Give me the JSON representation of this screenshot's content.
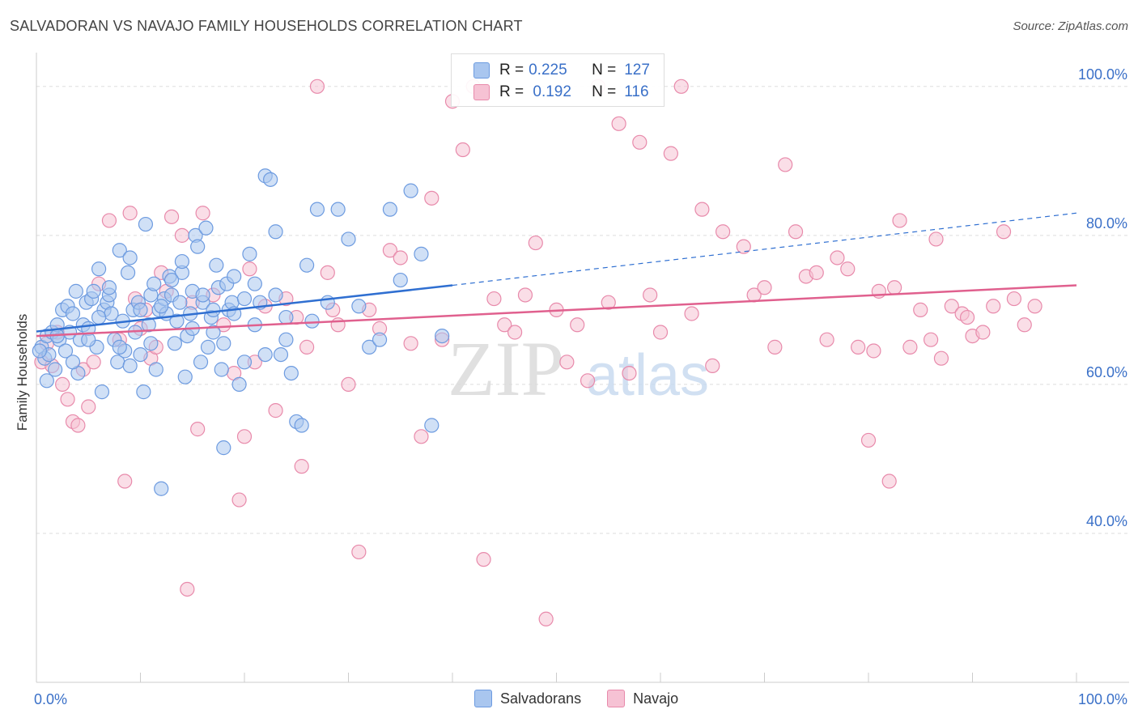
{
  "title": "SALVADORAN VS NAVAJO FAMILY HOUSEHOLDS CORRELATION CHART",
  "source": "Source: ZipAtlas.com",
  "watermark": {
    "zip": "ZIP",
    "atlas": "atlas"
  },
  "legend": {
    "rows": [
      {
        "r_label": "R =",
        "r_value": "0.225",
        "n_label": "N =",
        "n_value": "127"
      },
      {
        "r_label": "R =",
        "r_value": " 0.192",
        "n_label": "N =",
        "n_value": "116"
      }
    ]
  },
  "bottom_legend": [
    "Salvadorans",
    "Navajo"
  ],
  "colors": {
    "blue_fill": "#a9c6ef",
    "blue_stroke": "#6d9be0",
    "blue_line": "#2f6fd1",
    "pink_fill": "#f6c2d4",
    "pink_stroke": "#e88aab",
    "pink_line": "#e0608e",
    "grid": "#dddddd",
    "axis_text": "#3a70c8"
  },
  "chart_data": {
    "type": "scatter",
    "title": "SALVADORAN VS NAVAJO FAMILY HOUSEHOLDS CORRELATION CHART",
    "xlabel": "",
    "ylabel": "Family Households",
    "xlim": [
      0,
      100
    ],
    "ylim": [
      20,
      104
    ],
    "x_tick_labels": [
      "0.0%",
      "100.0%"
    ],
    "y_ticks": [
      40,
      60,
      80,
      100
    ],
    "y_tick_labels": [
      "40.0%",
      "60.0%",
      "80.0%",
      "100.0%"
    ],
    "series": [
      {
        "name": "Salvadorans",
        "r": 0.225,
        "n": 127,
        "trend": {
          "x0": 0,
          "y0": 67.1,
          "x1": 40,
          "y1": 73.3,
          "dash_to_x": 100,
          "dash_to_y": 83.0
        },
        "points": [
          [
            0.5,
            65.0
          ],
          [
            0.8,
            63.5
          ],
          [
            1.0,
            66.5
          ],
          [
            1.2,
            64.0
          ],
          [
            1.5,
            67.0
          ],
          [
            1.8,
            62.0
          ],
          [
            2.0,
            68.0
          ],
          [
            2.2,
            66.0
          ],
          [
            2.5,
            70.0
          ],
          [
            2.8,
            64.5
          ],
          [
            3.0,
            70.5
          ],
          [
            3.2,
            67.0
          ],
          [
            3.5,
            69.5
          ],
          [
            3.8,
            72.5
          ],
          [
            4.0,
            61.5
          ],
          [
            4.2,
            66.0
          ],
          [
            4.5,
            68.0
          ],
          [
            4.8,
            71.0
          ],
          [
            5.0,
            67.5
          ],
          [
            5.3,
            71.5
          ],
          [
            5.5,
            72.5
          ],
          [
            5.8,
            65.0
          ],
          [
            6.0,
            75.5
          ],
          [
            6.3,
            59.0
          ],
          [
            6.5,
            70.0
          ],
          [
            6.8,
            71.0
          ],
          [
            7.0,
            72.0
          ],
          [
            7.2,
            69.5
          ],
          [
            7.5,
            66.0
          ],
          [
            7.8,
            63.0
          ],
          [
            8.0,
            78.0
          ],
          [
            8.3,
            68.5
          ],
          [
            8.5,
            64.5
          ],
          [
            8.8,
            75.0
          ],
          [
            9.0,
            77.0
          ],
          [
            9.3,
            70.0
          ],
          [
            9.5,
            67.0
          ],
          [
            9.8,
            71.0
          ],
          [
            10.0,
            64.0
          ],
          [
            10.3,
            59.0
          ],
          [
            10.5,
            81.5
          ],
          [
            10.8,
            68.0
          ],
          [
            11.0,
            72.0
          ],
          [
            11.3,
            73.5
          ],
          [
            11.5,
            62.0
          ],
          [
            11.8,
            70.0
          ],
          [
            12.0,
            46.0
          ],
          [
            12.3,
            71.5
          ],
          [
            12.5,
            69.5
          ],
          [
            12.8,
            74.5
          ],
          [
            13.0,
            72.0
          ],
          [
            13.3,
            65.5
          ],
          [
            13.5,
            68.5
          ],
          [
            13.8,
            71.0
          ],
          [
            14.0,
            75.0
          ],
          [
            14.3,
            61.0
          ],
          [
            14.5,
            66.5
          ],
          [
            14.8,
            69.5
          ],
          [
            15.0,
            72.5
          ],
          [
            15.3,
            80.0
          ],
          [
            15.5,
            78.5
          ],
          [
            15.8,
            63.0
          ],
          [
            16.0,
            71.0
          ],
          [
            16.3,
            81.0
          ],
          [
            16.5,
            65.0
          ],
          [
            16.8,
            69.0
          ],
          [
            17.0,
            67.0
          ],
          [
            17.3,
            76.0
          ],
          [
            17.5,
            73.0
          ],
          [
            17.8,
            62.0
          ],
          [
            18.0,
            51.5
          ],
          [
            18.3,
            73.5
          ],
          [
            18.5,
            70.0
          ],
          [
            18.8,
            71.0
          ],
          [
            19.0,
            74.5
          ],
          [
            19.5,
            60.0
          ],
          [
            20.0,
            63.0
          ],
          [
            20.5,
            77.5
          ],
          [
            21.0,
            73.5
          ],
          [
            21.5,
            71.0
          ],
          [
            22.0,
            88.0
          ],
          [
            22.5,
            87.5
          ],
          [
            23.0,
            80.5
          ],
          [
            23.5,
            64.0
          ],
          [
            24.0,
            66.0
          ],
          [
            24.5,
            61.5
          ],
          [
            25.0,
            55.0
          ],
          [
            25.5,
            54.5
          ],
          [
            26.0,
            76.0
          ],
          [
            26.5,
            68.5
          ],
          [
            27.0,
            83.5
          ],
          [
            28.0,
            71.0
          ],
          [
            29.0,
            83.5
          ],
          [
            30.0,
            79.5
          ],
          [
            31.0,
            70.5
          ],
          [
            32.0,
            65.0
          ],
          [
            33.0,
            66.0
          ],
          [
            34.0,
            83.5
          ],
          [
            35.0,
            74.0
          ],
          [
            36.0,
            86.0
          ],
          [
            37.0,
            77.5
          ],
          [
            38.0,
            54.5
          ],
          [
            39.0,
            66.5
          ],
          [
            1.0,
            60.5
          ],
          [
            2.0,
            66.5
          ],
          [
            3.5,
            63.0
          ],
          [
            5.0,
            66.0
          ],
          [
            6.0,
            69.0
          ],
          [
            7.0,
            73.0
          ],
          [
            8.0,
            65.0
          ],
          [
            9.0,
            62.5
          ],
          [
            10.0,
            70.0
          ],
          [
            11.0,
            65.5
          ],
          [
            12.0,
            70.5
          ],
          [
            13.0,
            74.0
          ],
          [
            14.0,
            76.5
          ],
          [
            15.0,
            67.5
          ],
          [
            16.0,
            72.0
          ],
          [
            17.0,
            70.0
          ],
          [
            18.0,
            65.5
          ],
          [
            19.0,
            69.5
          ],
          [
            20.0,
            71.5
          ],
          [
            21.0,
            68.0
          ],
          [
            22.0,
            64.0
          ],
          [
            23.0,
            72.0
          ],
          [
            24.0,
            69.0
          ],
          [
            0.3,
            64.5
          ]
        ]
      },
      {
        "name": "Navajo",
        "r": 0.192,
        "n": 116,
        "trend": {
          "x0": 0,
          "y0": 66.5,
          "x1": 100,
          "y1": 73.3
        },
        "points": [
          [
            0.5,
            63.0
          ],
          [
            1.0,
            65.5
          ],
          [
            1.5,
            62.5
          ],
          [
            2.0,
            67.0
          ],
          [
            2.5,
            60.0
          ],
          [
            3.0,
            58.0
          ],
          [
            3.5,
            55.0
          ],
          [
            4.0,
            54.5
          ],
          [
            4.5,
            62.0
          ],
          [
            5.0,
            57.0
          ],
          [
            5.5,
            63.0
          ],
          [
            6.0,
            73.5
          ],
          [
            7.0,
            82.0
          ],
          [
            8.0,
            66.0
          ],
          [
            8.5,
            47.0
          ],
          [
            9.0,
            83.0
          ],
          [
            9.5,
            71.5
          ],
          [
            10.0,
            67.5
          ],
          [
            10.5,
            70.0
          ],
          [
            11.0,
            63.5
          ],
          [
            11.5,
            65.0
          ],
          [
            12.0,
            75.0
          ],
          [
            12.5,
            72.5
          ],
          [
            13.0,
            82.5
          ],
          [
            14.0,
            80.0
          ],
          [
            14.5,
            32.5
          ],
          [
            15.0,
            71.0
          ],
          [
            15.5,
            54.0
          ],
          [
            16.0,
            83.0
          ],
          [
            17.0,
            72.0
          ],
          [
            18.0,
            68.0
          ],
          [
            19.0,
            61.5
          ],
          [
            19.5,
            44.5
          ],
          [
            20.0,
            53.0
          ],
          [
            20.5,
            75.5
          ],
          [
            21.0,
            63.0
          ],
          [
            22.0,
            70.5
          ],
          [
            23.0,
            56.5
          ],
          [
            24.0,
            71.5
          ],
          [
            25.0,
            69.0
          ],
          [
            25.5,
            49.0
          ],
          [
            26.0,
            65.0
          ],
          [
            27.0,
            100.0
          ],
          [
            28.0,
            75.0
          ],
          [
            28.5,
            70.0
          ],
          [
            29.0,
            68.0
          ],
          [
            30.0,
            60.0
          ],
          [
            31.0,
            37.5
          ],
          [
            32.0,
            70.0
          ],
          [
            33.0,
            67.5
          ],
          [
            34.0,
            78.0
          ],
          [
            35.0,
            77.0
          ],
          [
            36.0,
            65.5
          ],
          [
            37.0,
            53.0
          ],
          [
            38.0,
            85.0
          ],
          [
            39.0,
            66.0
          ],
          [
            40.0,
            98.0
          ],
          [
            41.0,
            91.5
          ],
          [
            42.0,
            100.0
          ],
          [
            43.0,
            36.5
          ],
          [
            44.0,
            71.5
          ],
          [
            45.0,
            68.0
          ],
          [
            46.0,
            67.0
          ],
          [
            47.0,
            72.0
          ],
          [
            48.0,
            79.0
          ],
          [
            49.0,
            28.5
          ],
          [
            50.0,
            70.0
          ],
          [
            51.0,
            63.0
          ],
          [
            52.0,
            68.0
          ],
          [
            53.0,
            60.5
          ],
          [
            54.0,
            100.0
          ],
          [
            55.0,
            71.0
          ],
          [
            56.0,
            95.0
          ],
          [
            57.0,
            61.5
          ],
          [
            58.0,
            92.5
          ],
          [
            59.0,
            72.0
          ],
          [
            60.0,
            67.0
          ],
          [
            61.0,
            91.0
          ],
          [
            62.0,
            100.0
          ],
          [
            63.0,
            69.5
          ],
          [
            64.0,
            83.5
          ],
          [
            65.0,
            62.5
          ],
          [
            66.0,
            80.5
          ],
          [
            68.0,
            78.5
          ],
          [
            69.0,
            72.0
          ],
          [
            70.0,
            73.0
          ],
          [
            71.0,
            65.0
          ],
          [
            72.0,
            89.5
          ],
          [
            73.0,
            80.5
          ],
          [
            74.0,
            74.5
          ],
          [
            75.0,
            75.0
          ],
          [
            76.0,
            66.0
          ],
          [
            77.0,
            77.0
          ],
          [
            78.0,
            75.5
          ],
          [
            79.0,
            65.0
          ],
          [
            80.0,
            52.5
          ],
          [
            81.0,
            72.5
          ],
          [
            82.0,
            47.0
          ],
          [
            83.0,
            82.0
          ],
          [
            84.0,
            65.0
          ],
          [
            85.0,
            70.0
          ],
          [
            86.0,
            66.0
          ],
          [
            87.0,
            63.5
          ],
          [
            88.0,
            70.5
          ],
          [
            89.0,
            69.5
          ],
          [
            90.0,
            66.5
          ],
          [
            91.0,
            67.0
          ],
          [
            92.0,
            70.5
          ],
          [
            93.0,
            80.5
          ],
          [
            94.0,
            71.5
          ],
          [
            95.0,
            68.0
          ],
          [
            96.0,
            70.5
          ],
          [
            80.5,
            64.5
          ],
          [
            86.5,
            79.5
          ],
          [
            89.5,
            69.0
          ],
          [
            82.5,
            73.0
          ]
        ]
      }
    ]
  }
}
